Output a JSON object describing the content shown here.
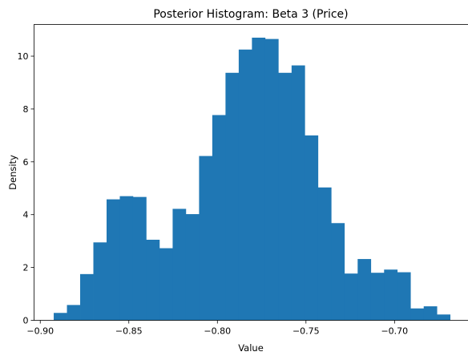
{
  "chart_data": {
    "type": "bar",
    "title": "Posterior Histogram: Beta 3 (Price)",
    "xlabel": "Value",
    "ylabel": "Density",
    "xlim": [
      -0.9035,
      -0.6583
    ],
    "ylim": [
      0,
      11.2
    ],
    "xticks": [
      {
        "value": -0.9,
        "label": "−0.90"
      },
      {
        "value": -0.85,
        "label": "−0.85"
      },
      {
        "value": -0.8,
        "label": "−0.80"
      },
      {
        "value": -0.75,
        "label": "−0.75"
      },
      {
        "value": -0.7,
        "label": "−0.70"
      }
    ],
    "yticks": [
      {
        "value": 0,
        "label": "0"
      },
      {
        "value": 2,
        "label": "2"
      },
      {
        "value": 4,
        "label": "4"
      },
      {
        "value": 6,
        "label": "6"
      },
      {
        "value": 8,
        "label": "8"
      },
      {
        "value": 10,
        "label": "10"
      }
    ],
    "bin_start": -0.8924,
    "bin_width": 0.00746,
    "values": [
      0.28,
      0.58,
      1.75,
      2.95,
      4.58,
      4.7,
      4.67,
      3.05,
      2.73,
      4.22,
      4.02,
      6.22,
      7.77,
      9.37,
      10.25,
      10.7,
      10.65,
      9.37,
      9.65,
      7.0,
      5.03,
      3.68,
      1.77,
      2.32,
      1.8,
      1.92,
      1.82,
      0.45,
      0.53,
      0.22
    ],
    "color": "#1f77b4",
    "grid": false
  }
}
